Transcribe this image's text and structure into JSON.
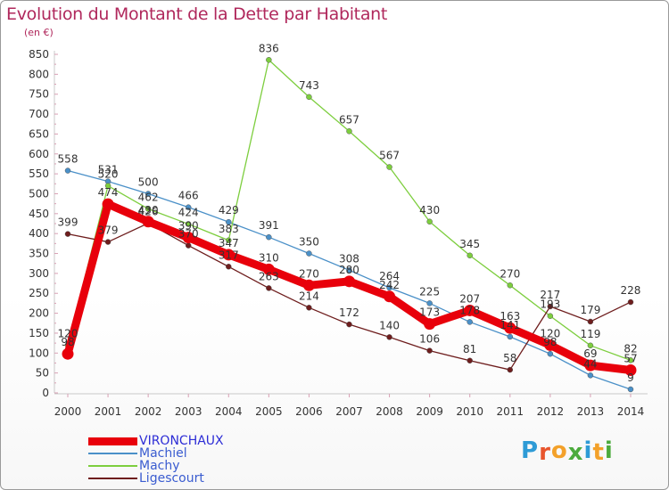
{
  "title": "Evolution du Montant de la Dette par Habitant",
  "unit_label": "(en €)",
  "logo": {
    "text": "Proxiti",
    "colors": [
      "#2e9bd6",
      "#e8542c",
      "#f3a12a",
      "#4cab3d",
      "#2e9bd6",
      "#f3a12a",
      "#4cab3d"
    ]
  },
  "chart_data": {
    "type": "line",
    "title": "Evolution du Montant de la Dette par Habitant",
    "ylabel": "(en €)",
    "xlabel": "",
    "x": [
      2000,
      2001,
      2002,
      2003,
      2004,
      2005,
      2006,
      2007,
      2008,
      2009,
      2010,
      2011,
      2012,
      2013,
      2014
    ],
    "ylim": [
      0,
      850
    ],
    "yticks": [
      0,
      50,
      100,
      150,
      200,
      250,
      300,
      350,
      400,
      450,
      500,
      550,
      600,
      650,
      700,
      750,
      800,
      850
    ],
    "grid": false,
    "legend_position": "bottom-left",
    "series": [
      {
        "name": "VIRONCHAUX",
        "color": "#e8000b",
        "emphasis": true,
        "values": [
          98,
          474,
          430,
          390,
          347,
          310,
          270,
          280,
          242,
          173,
          207,
          163,
          120,
          69,
          57
        ]
      },
      {
        "name": "Machiel",
        "color": "#4a90c8",
        "values": [
          558,
          531,
          500,
          466,
          429,
          391,
          350,
          308,
          264,
          225,
          178,
          141,
          98,
          44,
          9
        ]
      },
      {
        "name": "Machy",
        "color": "#7dce3e",
        "values": [
          120,
          520,
          462,
          424,
          383,
          836,
          743,
          657,
          567,
          430,
          345,
          270,
          193,
          119,
          82
        ]
      },
      {
        "name": "Ligescourt",
        "color": "#6e1d1d",
        "values": [
          399,
          379,
          426,
          370,
          317,
          263,
          214,
          172,
          140,
          106,
          81,
          58,
          217,
          179,
          228
        ]
      }
    ]
  }
}
